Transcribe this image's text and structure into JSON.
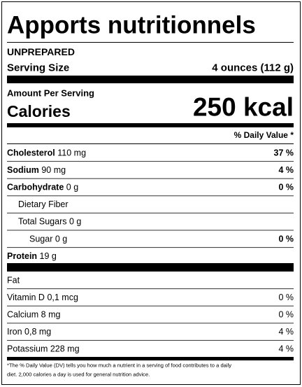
{
  "header": {
    "title": "Apports nutritionnels",
    "preparation": "UNPREPARED",
    "serving_size_label": "Serving Size",
    "serving_size": "4 ounces (112 g)"
  },
  "calories": {
    "amount_label": "Amount Per Serving",
    "label": "Calories",
    "value": "250 kcal"
  },
  "daily_value_header": "% Daily Value *",
  "nutrients": [
    {
      "name": "Cholesterol",
      "amount": "110 mg",
      "daily_value": "37 %"
    },
    {
      "name": "Sodium",
      "amount": "90 mg",
      "daily_value": "4 %"
    },
    {
      "name": "Carbohydrate",
      "amount": "0 g",
      "daily_value": "0 %",
      "sub": [
        {
          "name": "Dietary Fiber"
        },
        {
          "name": "Total Sugars",
          "amount": "0 g",
          "sub": [
            {
              "name": "Sugar",
              "amount": "0 g",
              "daily_value": "0 %"
            }
          ]
        }
      ]
    },
    {
      "name": "Protein",
      "amount": "19 g"
    }
  ],
  "vitamins_minerals": [
    {
      "name": "Fat"
    },
    {
      "name": "Vitamin D",
      "amount": "0,1 mcg",
      "daily_value": "0 %"
    },
    {
      "name": "Calcium",
      "amount": "8 mg",
      "daily_value": "0 %"
    },
    {
      "name": "Iron",
      "amount": "0,8 mg",
      "daily_value": "4 %"
    },
    {
      "name": "Potassium",
      "amount": "228 mg",
      "daily_value": "4 %"
    }
  ],
  "footnote": [
    "*The % Daily Value (DV) tells you how much a nutrient in a serving of food contributes to a daily",
    "diet. 2,000 calories a day is used for general nutrition advice."
  ]
}
